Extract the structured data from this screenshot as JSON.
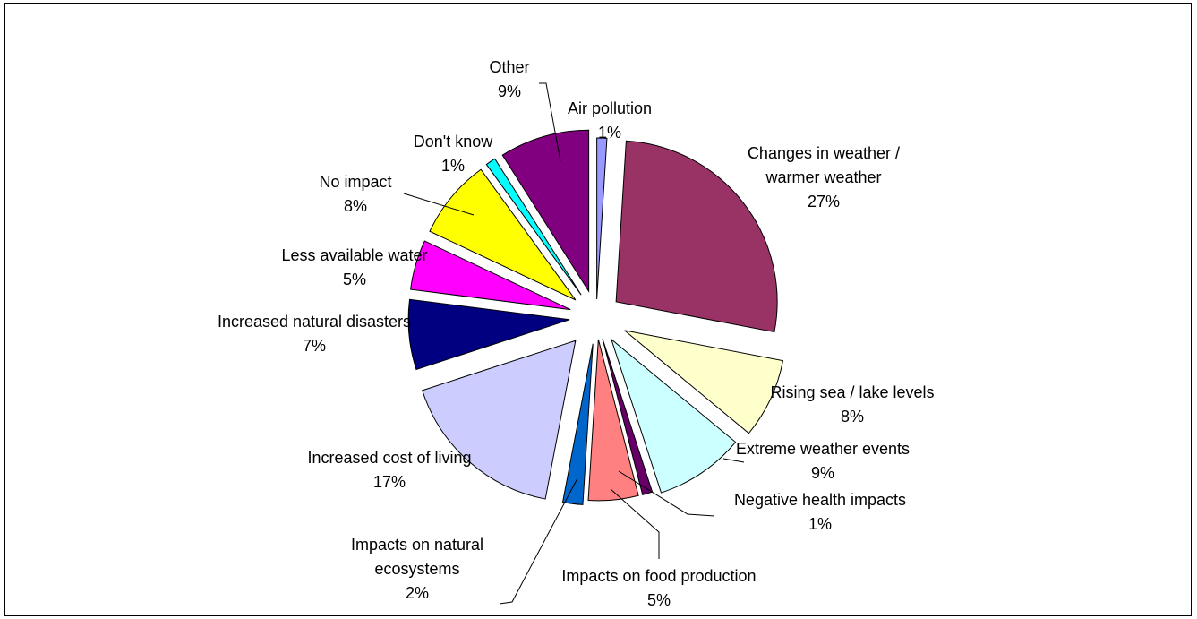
{
  "chart_data": {
    "type": "pie",
    "title": "",
    "slices": [
      {
        "label": [
          "Air pollution"
        ],
        "value": 1,
        "display": "1%",
        "color": "#9999ff"
      },
      {
        "label": [
          "Changes in weather /",
          "warmer weather"
        ],
        "value": 27,
        "display": "27%",
        "color": "#993366"
      },
      {
        "label": [
          "Rising sea / lake levels"
        ],
        "value": 8,
        "display": "8%",
        "color": "#ffffcc"
      },
      {
        "label": [
          "Extreme weather events"
        ],
        "value": 9,
        "display": "9%",
        "color": "#ccffff"
      },
      {
        "label": [
          "Negative health impacts"
        ],
        "value": 1,
        "display": "1%",
        "color": "#660066"
      },
      {
        "label": [
          "Impacts on food production"
        ],
        "value": 5,
        "display": "5%",
        "color": "#ff8080"
      },
      {
        "label": [
          "Impacts on natural",
          "ecosystems"
        ],
        "value": 2,
        "display": "2%",
        "color": "#0066cc"
      },
      {
        "label": [
          "Increased cost of living"
        ],
        "value": 17,
        "display": "17%",
        "color": "#ccccff"
      },
      {
        "label": [
          "Increased natural disasters"
        ],
        "value": 7,
        "display": "7%",
        "color": "#000080"
      },
      {
        "label": [
          "Less available water"
        ],
        "value": 5,
        "display": "5%",
        "color": "#ff00ff"
      },
      {
        "label": [
          "No impact"
        ],
        "value": 8,
        "display": "8%",
        "color": "#ffff00"
      },
      {
        "label": [
          "Don't know"
        ],
        "value": 1,
        "display": "1%",
        "color": "#00ffff"
      },
      {
        "label": [
          "Other"
        ],
        "value": 9,
        "display": "9%",
        "color": "#800080"
      }
    ]
  }
}
